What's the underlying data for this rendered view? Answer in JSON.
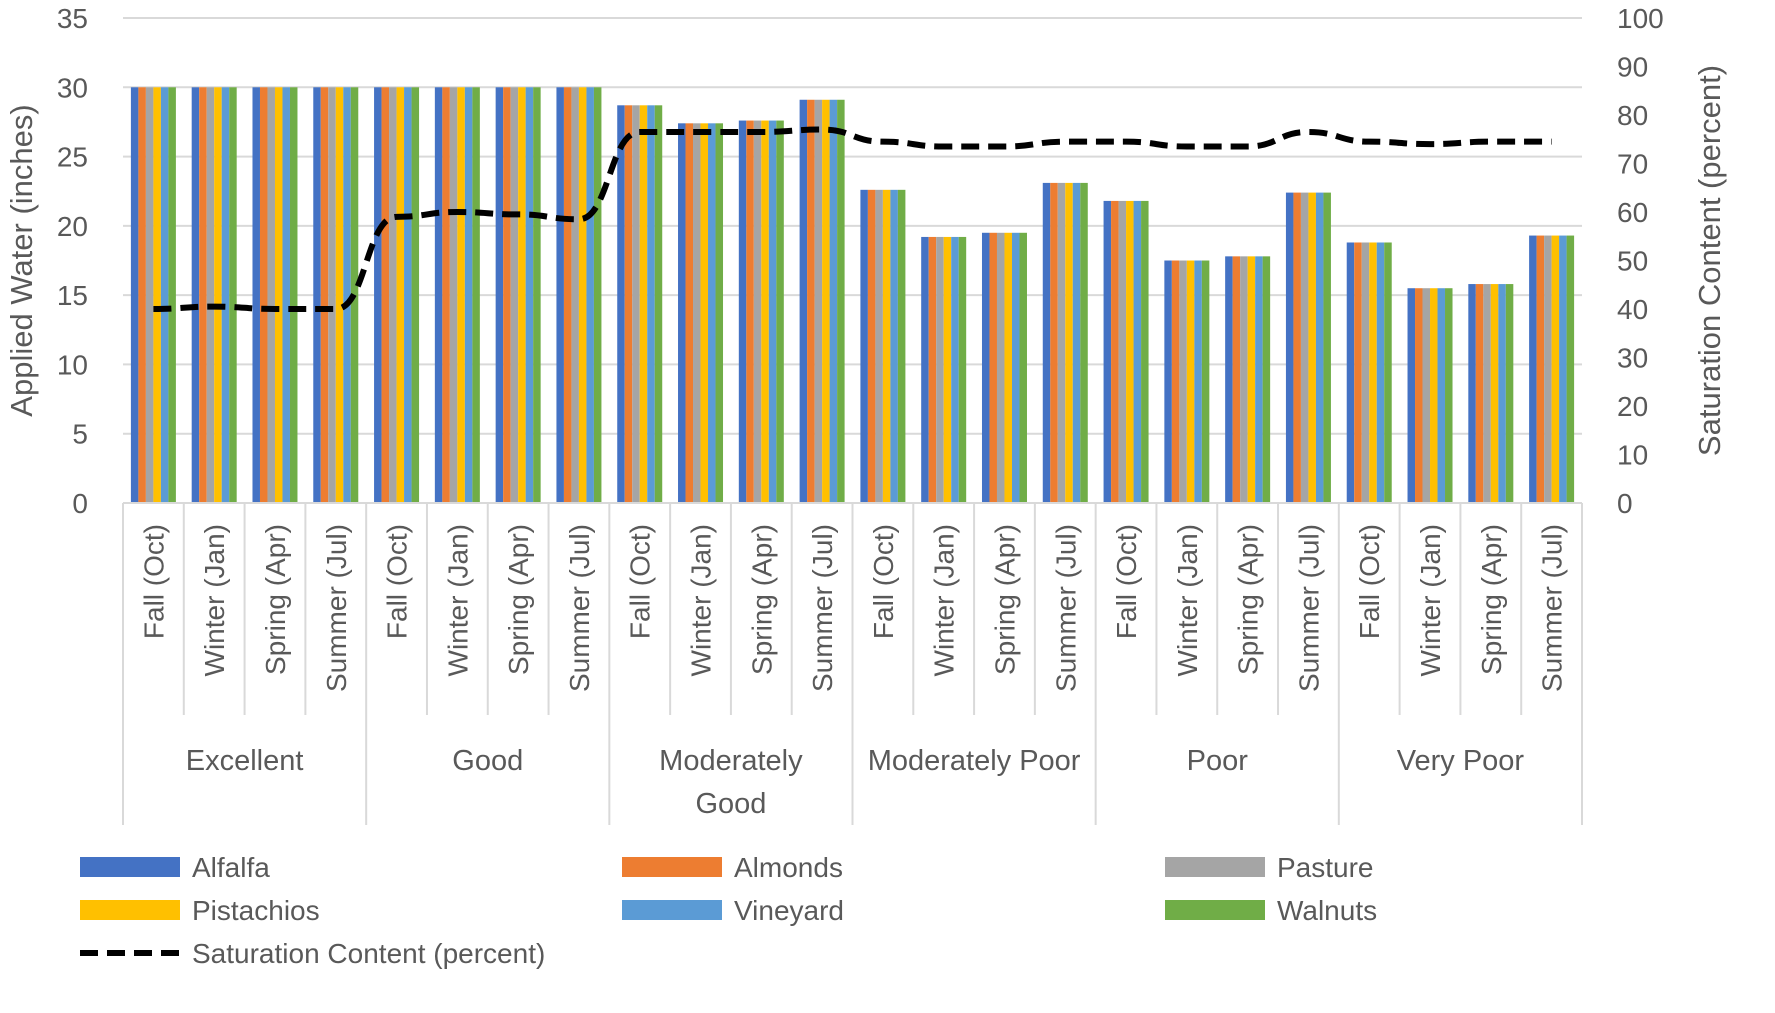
{
  "chart_data": {
    "type": "bar",
    "title": "",
    "ylabel": "Applied Water (inches)",
    "y2label": "Saturation Content (percent)",
    "ylim": [
      0,
      35
    ],
    "y2lim": [
      0,
      100
    ],
    "yticks": [
      "0",
      "5",
      "10",
      "15",
      "20",
      "25",
      "30",
      "35"
    ],
    "y2ticks": [
      "0",
      "10",
      "20",
      "30",
      "40",
      "50",
      "60",
      "70",
      "80",
      "90",
      "100"
    ],
    "grid": true,
    "legend_position": "bottom",
    "groups": [
      {
        "name_lines": [
          "Excellent"
        ]
      },
      {
        "name_lines": [
          "Good"
        ]
      },
      {
        "name_lines": [
          "Moderately",
          "Good"
        ]
      },
      {
        "name_lines": [
          "Moderately Poor"
        ]
      },
      {
        "name_lines": [
          "Poor"
        ]
      },
      {
        "name_lines": [
          "Very Poor"
        ]
      }
    ],
    "seasons": [
      "Fall (Oct)",
      "Winter (Jan)",
      "Spring (Apr)",
      "Summer (Jul)"
    ],
    "series": [
      {
        "name": "Alfalfa",
        "color": "#4472C4",
        "values": [
          30,
          30,
          30,
          30,
          30,
          30,
          30,
          30,
          28.7,
          27.4,
          27.6,
          29.1,
          22.6,
          19.2,
          19.5,
          23.1,
          21.8,
          17.5,
          17.8,
          22.4,
          18.8,
          15.5,
          15.8,
          19.3
        ]
      },
      {
        "name": "Almonds",
        "color": "#ED7D31",
        "values": [
          30,
          30,
          30,
          30,
          30,
          30,
          30,
          30,
          28.7,
          27.4,
          27.6,
          29.1,
          22.6,
          19.2,
          19.5,
          23.1,
          21.8,
          17.5,
          17.8,
          22.4,
          18.8,
          15.5,
          15.8,
          19.3
        ]
      },
      {
        "name": "Pasture",
        "color": "#A5A5A5",
        "values": [
          30,
          30,
          30,
          30,
          30,
          30,
          30,
          30,
          28.7,
          27.4,
          27.6,
          29.1,
          22.6,
          19.2,
          19.5,
          23.1,
          21.8,
          17.5,
          17.8,
          22.4,
          18.8,
          15.5,
          15.8,
          19.3
        ]
      },
      {
        "name": "Pistachios",
        "color": "#FFC000",
        "values": [
          30,
          30,
          30,
          30,
          30,
          30,
          30,
          30,
          28.7,
          27.4,
          27.6,
          29.1,
          22.6,
          19.2,
          19.5,
          23.1,
          21.8,
          17.5,
          17.8,
          22.4,
          18.8,
          15.5,
          15.8,
          19.3
        ]
      },
      {
        "name": "Vineyard",
        "color": "#5B9BD5",
        "values": [
          30,
          30,
          30,
          30,
          30,
          30,
          30,
          30,
          28.7,
          27.4,
          27.6,
          29.1,
          22.6,
          19.2,
          19.5,
          23.1,
          21.8,
          17.5,
          17.8,
          22.4,
          18.8,
          15.5,
          15.8,
          19.3
        ]
      },
      {
        "name": "Walnuts",
        "color": "#70AD47",
        "values": [
          30,
          30,
          30,
          30,
          30,
          30,
          30,
          30,
          28.7,
          27.4,
          27.6,
          29.1,
          22.6,
          19.2,
          19.5,
          23.1,
          21.8,
          17.5,
          17.8,
          22.4,
          18.8,
          15.5,
          15.8,
          19.3
        ]
      }
    ],
    "line_series": {
      "name": "Saturation Content (percent)",
      "color": "#000000",
      "axis": "secondary",
      "values": [
        40,
        40.5,
        40,
        40,
        59,
        60,
        59.5,
        58.5,
        76.5,
        76.5,
        76.5,
        77,
        74.5,
        73.5,
        73.5,
        74.5,
        74.5,
        73.5,
        73.5,
        76.5,
        74.5,
        74,
        74.5,
        74.5
      ]
    }
  }
}
